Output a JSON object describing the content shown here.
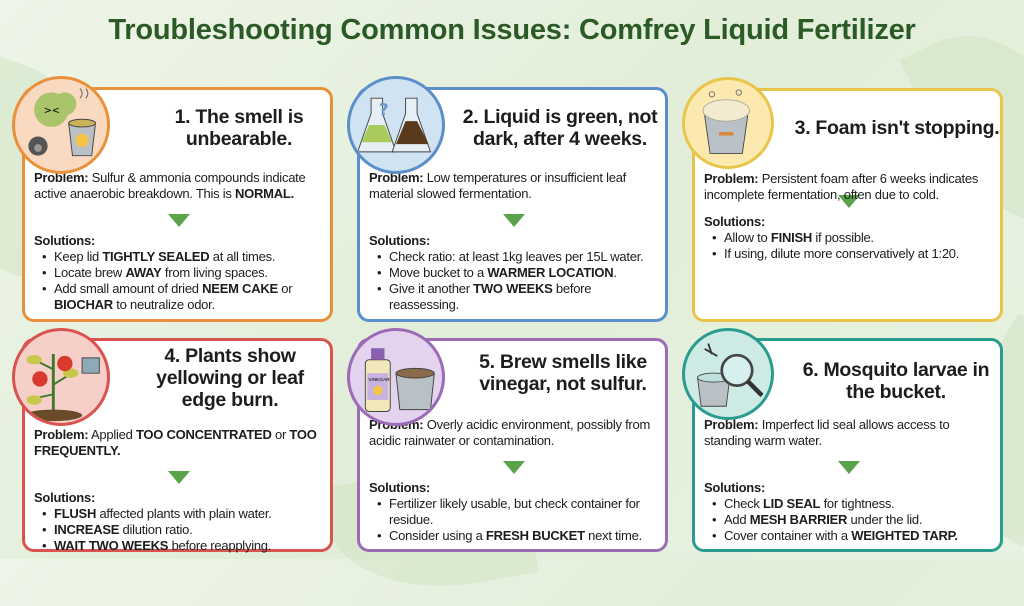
{
  "title": "Troubleshooting Common Issues: Comfrey Liquid Fertilizer",
  "colors": {
    "title": "#2b5a26",
    "arrow": "#5aa34a",
    "background": "#e4efdc"
  },
  "cards": [
    {
      "title": "1. The smell is unbearable.",
      "color": "#e8913a",
      "circle_fill": "#f9d9bf",
      "icon": "smelly-bucket-gas-mask-icon",
      "problem_label": "Problem:",
      "problem": [
        {
          "t": " Sulfur & ammonia compounds indicate active anaerobic breakdown. This is "
        },
        {
          "t": "NORMAL.",
          "b": true
        }
      ],
      "solutions_label": "Solutions:",
      "solutions": [
        [
          {
            "t": "Keep lid "
          },
          {
            "t": "TIGHTLY SEALED",
            "b": true
          },
          {
            "t": " at all times."
          }
        ],
        [
          {
            "t": "Locate brew "
          },
          {
            "t": "AWAY",
            "b": true
          },
          {
            "t": " from living spaces."
          }
        ],
        [
          {
            "t": "Add small amount of dried "
          },
          {
            "t": "NEEM CAKE",
            "b": true
          },
          {
            "t": " or "
          },
          {
            "t": "BIOCHAR",
            "b": true
          },
          {
            "t": " to neutralize odor."
          }
        ]
      ]
    },
    {
      "title": "2. Liquid is green, not dark, after 4 weeks.",
      "color": "#5b8fc9",
      "circle_fill": "#cfe3f3",
      "icon": "flasks-question-icon",
      "problem_label": "Problem:",
      "problem": [
        {
          "t": " Low temperatures or insufficient leaf material slowed fermentation."
        }
      ],
      "solutions_label": "Solutions:",
      "solutions": [
        [
          {
            "t": "Check ratio: at least 1kg leaves per 15L water."
          }
        ],
        [
          {
            "t": "Move bucket to a "
          },
          {
            "t": "WARMER LOCATION",
            "b": true
          },
          {
            "t": "."
          }
        ],
        [
          {
            "t": "Give it another "
          },
          {
            "t": "TWO WEEKS",
            "b": true
          },
          {
            "t": " before reassessing."
          }
        ]
      ]
    },
    {
      "title": "3. Foam isn't stopping.",
      "color": "#e8c54a",
      "circle_fill": "#fbe9b0",
      "icon": "foaming-bucket-icon",
      "problem_label": "Problem:",
      "problem": [
        {
          "t": " Persistent foam after 6 weeks indicates incomplete fermentation, often due to cold."
        }
      ],
      "solutions_label": "Solutions:",
      "solutions": [
        [
          {
            "t": "Allow to "
          },
          {
            "t": "FINISH",
            "b": true
          },
          {
            "t": " if possible."
          }
        ],
        [
          {
            "t": "If using, dilute more conservatively at 1:20."
          }
        ]
      ]
    },
    {
      "title": "4. Plants show yellowing or leaf edge burn.",
      "color": "#d9534f",
      "circle_fill": "#f6cfc8",
      "icon": "tomato-plant-watering-can-icon",
      "problem_label": "Problem:",
      "problem": [
        {
          "t": " Applied "
        },
        {
          "t": "TOO CONCENTRATED",
          "b": true
        },
        {
          "t": " or "
        },
        {
          "t": "TOO FREQUENTLY.",
          "b": true
        }
      ],
      "solutions_label": "Solutions:",
      "solutions": [
        [
          {
            "t": "FLUSH",
            "b": true
          },
          {
            "t": " affected plants with plain water."
          }
        ],
        [
          {
            "t": "INCREASE",
            "b": true
          },
          {
            "t": " dilution ratio."
          }
        ],
        [
          {
            "t": "WAIT TWO WEEKS",
            "b": true
          },
          {
            "t": " before reapplying."
          }
        ]
      ]
    },
    {
      "title": "5. Brew smells like vinegar, not sulfur.",
      "color": "#9b6bb5",
      "circle_fill": "#e3d3ee",
      "icon": "vinegar-bottle-bucket-icon",
      "icon_text": "VINEGAR",
      "problem_label": "Problem:",
      "problem": [
        {
          "t": " Overly acidic environment, possibly from acidic rainwater or contamination."
        }
      ],
      "solutions_label": "Solutions:",
      "solutions": [
        [
          {
            "t": "Fertilizer likely usable, but check container for residue."
          }
        ],
        [
          {
            "t": "Consider using a "
          },
          {
            "t": "FRESH BUCKET",
            "b": true
          },
          {
            "t": " next time."
          }
        ]
      ]
    },
    {
      "title": "6. Mosquito larvae in the bucket.",
      "color": "#2a9b8f",
      "circle_fill": "#cdeae5",
      "icon": "mosquito-magnifier-bucket-icon",
      "problem_label": "Problem:",
      "problem": [
        {
          "t": " Imperfect lid seal allows access to standing warm water."
        }
      ],
      "solutions_label": "Solutions:",
      "solutions": [
        [
          {
            "t": "Check "
          },
          {
            "t": "LID SEAL",
            "b": true
          },
          {
            "t": " for tightness."
          }
        ],
        [
          {
            "t": "Add "
          },
          {
            "t": "MESH BARRIER",
            "b": true
          },
          {
            "t": " under the lid."
          }
        ],
        [
          {
            "t": "Cover container with a "
          },
          {
            "t": "WEIGHTED TARP.",
            "b": true
          }
        ]
      ]
    }
  ]
}
